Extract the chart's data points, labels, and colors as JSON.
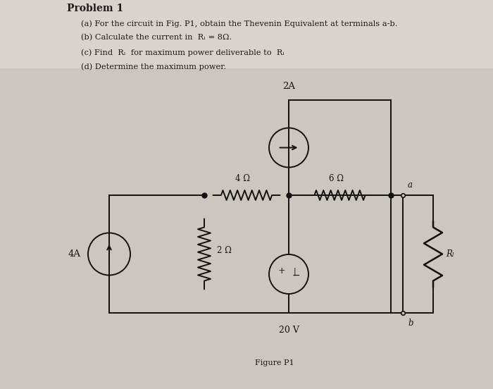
{
  "bg_color": "#cbc6bf",
  "fig_bg": "#cbc6bf",
  "title_text": "Problem 1",
  "line_a": "(a) For the circuit in Fig. P1, obtain the Thevenin Equivalent at terminals a-b.",
  "line_b": "(b) Calculate the current in  Rₗ = 8Ω.",
  "line_c": "(c) Find  Rₗ  for maximum power deliverable to  Rₗ",
  "line_d": "(d) Determine the maximum power.",
  "figure_label": "Figure P1",
  "circuit_color": "#111111",
  "resistor_4ohm_label": "4 Ω",
  "resistor_6ohm_label": "6 Ω",
  "resistor_2ohm_label": "2 Ω",
  "resistor_RL_label": "Rₗ",
  "current_source_label": "4A",
  "current_source2_label": "2A",
  "voltage_source_label": "20 V",
  "terminal_a": "a",
  "terminal_b": "b",
  "text_color": "#1a1a1a"
}
